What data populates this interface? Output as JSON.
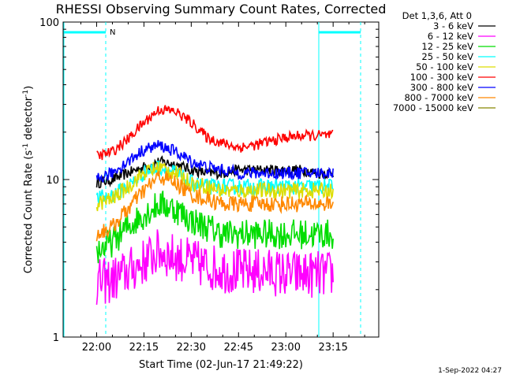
{
  "chart_data": {
    "type": "line",
    "title": "RHESSI Observing Summary Count Rates, Corrected",
    "xlabel": "Start Time (02-Jun-17 21:49:22)",
    "ylabel_main": "Corrected Count Rate (s",
    "ylabel_sup1": "-1",
    "ylabel_mid": " detector",
    "ylabel_sup2": "-1",
    "ylabel_end": ")",
    "ylabel": "Corrected Count Rate (s^-1 detector^-1)",
    "yscale": "log",
    "ylim": [
      1,
      100
    ],
    "xlim_minutes": [
      -10.63,
      89.47
    ],
    "x_ticks": [
      {
        "label": "22:00",
        "min": 0
      },
      {
        "label": "22:15",
        "min": 15
      },
      {
        "label": "22:30",
        "min": 30
      },
      {
        "label": "22:45",
        "min": 45
      },
      {
        "label": "23:00",
        "min": 60
      },
      {
        "label": "23:15",
        "min": 75
      }
    ],
    "y_ticks": [
      {
        "label": "1",
        "value": 1
      },
      {
        "label": "10",
        "value": 10
      },
      {
        "label": "100",
        "value": 100
      }
    ],
    "legend_header": "Det 1,3,6, Att 0",
    "data_window_minutes": [
      0,
      75
    ],
    "series": [
      {
        "name": "3 - 6 keV",
        "color": "#000000",
        "x": [
          0,
          5,
          10,
          15,
          20,
          25,
          30,
          35,
          40,
          45,
          50,
          55,
          60,
          65,
          70,
          75
        ],
        "y": [
          9.5,
          10,
          11,
          12,
          13,
          12.5,
          11.5,
          11,
          11,
          11.5,
          11.5,
          11.5,
          11.5,
          11.5,
          11,
          11
        ]
      },
      {
        "name": "6 - 12 keV",
        "color": "#ff00ff",
        "x": [
          0,
          5,
          10,
          15,
          20,
          25,
          30,
          35,
          40,
          45,
          50,
          55,
          60,
          65,
          70,
          75
        ],
        "y": [
          2.2,
          2.3,
          2.6,
          3,
          3.5,
          3.2,
          3,
          2.8,
          2.7,
          2.6,
          2.6,
          2.6,
          2.5,
          2.5,
          2.5,
          2.5
        ]
      },
      {
        "name": "12 - 25 keV",
        "color": "#00dd00",
        "x": [
          0,
          5,
          10,
          15,
          20,
          25,
          30,
          35,
          40,
          45,
          50,
          55,
          60,
          65,
          70,
          75
        ],
        "y": [
          3.5,
          4,
          5,
          6,
          7,
          6.5,
          5.5,
          5,
          4.5,
          4.5,
          4.5,
          4.5,
          4.5,
          4.5,
          4.5,
          4.5
        ]
      },
      {
        "name": "25 - 50 keV",
        "color": "#00ffff",
        "x": [
          0,
          5,
          10,
          15,
          20,
          25,
          30,
          35,
          40,
          45,
          50,
          55,
          60,
          65,
          70,
          75
        ],
        "y": [
          7.5,
          8,
          9,
          11,
          12,
          11,
          9.5,
          9,
          9,
          9,
          9,
          9,
          9,
          9,
          9,
          9
        ]
      },
      {
        "name": "50 - 100 keV",
        "color": "#dddd00",
        "x": [
          0,
          5,
          10,
          15,
          20,
          25,
          30,
          35,
          40,
          45,
          50,
          55,
          60,
          65,
          70,
          75
        ],
        "y": [
          7,
          7.5,
          9,
          11,
          12,
          11,
          9.5,
          9,
          8.5,
          8.5,
          8.5,
          8.5,
          8.5,
          8.5,
          8.5,
          8.5
        ]
      },
      {
        "name": "100 - 300 keV",
        "color": "#ff0000",
        "x": [
          0,
          5,
          10,
          15,
          20,
          25,
          30,
          35,
          40,
          45,
          50,
          55,
          60,
          65,
          70,
          75
        ],
        "y": [
          14,
          15,
          18,
          23,
          28,
          27,
          23,
          18.5,
          17,
          16,
          16.5,
          17.5,
          18.5,
          19,
          19,
          19
        ]
      },
      {
        "name": "300 - 800 keV",
        "color": "#0000ff",
        "x": [
          0,
          5,
          10,
          15,
          20,
          25,
          30,
          35,
          40,
          45,
          50,
          55,
          60,
          65,
          70,
          75
        ],
        "y": [
          10,
          11,
          13,
          15.5,
          16.5,
          15,
          13,
          12,
          11.5,
          11,
          11,
          11,
          11,
          11,
          11,
          11
        ]
      },
      {
        "name": "800 - 7000 keV",
        "color": "#ff8800",
        "x": [
          0,
          5,
          10,
          15,
          20,
          25,
          30,
          35,
          40,
          45,
          50,
          55,
          60,
          65,
          70,
          75
        ],
        "y": [
          4.5,
          5,
          6.5,
          8.5,
          10.5,
          9.5,
          8,
          7.5,
          7,
          7,
          7,
          7,
          7,
          7,
          7,
          7
        ]
      },
      {
        "name": "7000 - 15000 keV",
        "color": "#888800",
        "x": [],
        "y": []
      }
    ],
    "annotations": [
      {
        "label": "N",
        "color": "#00ffff"
      }
    ],
    "grid": false,
    "legend_placement": "right"
  },
  "footer": {
    "timestamp": "1-Sep-2022 04:27"
  }
}
